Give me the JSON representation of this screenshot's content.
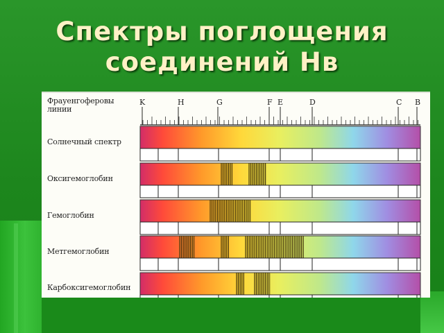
{
  "slide": {
    "title_line1": "Спектры поглощения",
    "title_line2": "соединений  Нв"
  },
  "figure": {
    "fraunhofer_label_line1": "Фрауенгоферовы",
    "fraunhofer_label_line2": "линии",
    "line_letters": [
      "K",
      "H",
      "G",
      "F",
      "E",
      "D",
      "C",
      "B"
    ],
    "rows": [
      {
        "label": "Солнечный спектр"
      },
      {
        "label": "Оксигемоглобин"
      },
      {
        "label": "Гемоглобин"
      },
      {
        "label": "Метгемоглобин"
      },
      {
        "label": "Карбоксигемоглобин"
      }
    ]
  },
  "colors": {
    "background": "#1f8a1f",
    "title": "#fff1c6",
    "spectrum": [
      "#d22d68",
      "#ff4a3a",
      "#ff9a2a",
      "#ffd83a",
      "#e8ef60",
      "#bfe88a",
      "#8fd7ea",
      "#a08ee2",
      "#b44fa8"
    ]
  }
}
